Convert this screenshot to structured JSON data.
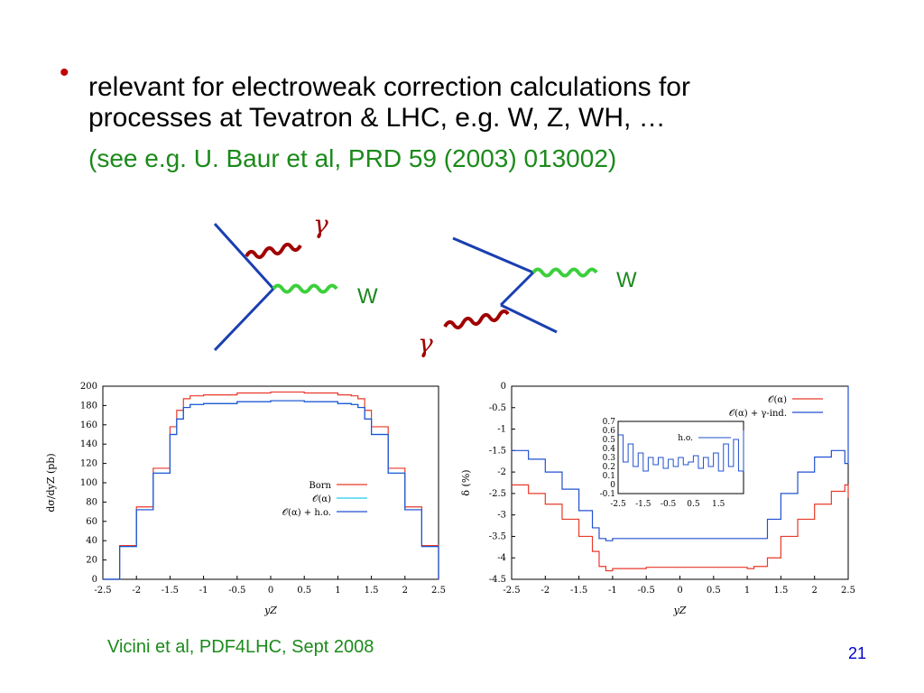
{
  "slide": {
    "bullet_line1": "relevant for electroweak correction calculations for",
    "bullet_line2": "processes at Tevatron & LHC, e.g. W, Z, WH, …",
    "reference": "(see e.g. U. Baur et al, PRD 59 (2003) 013002)",
    "footer": "Vicini et al, PDF4LHC, Sept 2008",
    "page_number": "21"
  },
  "diagrams": {
    "photon_label": "γ",
    "w_label": "W",
    "colors": {
      "fermion": "#1a3fb0",
      "photon": "#a00000",
      "w": "#3ccf3c",
      "label_green": "#1b8a1b"
    }
  },
  "chart_data": [
    {
      "type": "line",
      "xlabel": "yZ",
      "ylabel": "dσ/dyZ (pb)",
      "xlim": [
        -2.5,
        2.5
      ],
      "ylim": [
        0,
        200
      ],
      "xticks": [
        "-2.5",
        "-2",
        "-1.5",
        "-1",
        "-0.5",
        "0",
        "0.5",
        "1",
        "1.5",
        "2",
        "2.5"
      ],
      "yticks": [
        "0",
        "20",
        "40",
        "60",
        "80",
        "100",
        "120",
        "140",
        "160",
        "180",
        "200"
      ],
      "legend_position": "right",
      "series": [
        {
          "name": "Born",
          "color": "#e83a2a",
          "x": [
            -2.5,
            -2.25,
            -2.0,
            -1.75,
            -1.5,
            -1.4,
            -1.3,
            -1.2,
            -1.0,
            -0.5,
            0,
            0.5,
            1.0,
            1.2,
            1.3,
            1.4,
            1.5,
            1.75,
            2.0,
            2.25,
            2.5
          ],
          "y": [
            0,
            35,
            75,
            115,
            158,
            175,
            187,
            190,
            191,
            193,
            194,
            193,
            191,
            190,
            187,
            175,
            158,
            115,
            75,
            35,
            0
          ]
        },
        {
          "name": "𝒪(α)",
          "color": "#22ccee",
          "x": [
            -2.5,
            -2.25,
            -2.0,
            -1.75,
            -1.5,
            -1.4,
            -1.3,
            -1.2,
            -1.0,
            -0.5,
            0,
            0.5,
            1.0,
            1.2,
            1.3,
            1.4,
            1.5,
            1.75,
            2.0,
            2.25,
            2.5
          ],
          "y": [
            0,
            34,
            72,
            110,
            150,
            166,
            178,
            181,
            182,
            184,
            185,
            184,
            182,
            181,
            178,
            166,
            150,
            110,
            72,
            34,
            0
          ]
        },
        {
          "name": "𝒪(α) + h.o.",
          "color": "#2050d0",
          "x": [
            -2.5,
            -2.25,
            -2.0,
            -1.75,
            -1.5,
            -1.4,
            -1.3,
            -1.2,
            -1.0,
            -0.5,
            0,
            0.5,
            1.0,
            1.2,
            1.3,
            1.4,
            1.5,
            1.75,
            2.0,
            2.25,
            2.5
          ],
          "y": [
            0,
            34,
            72,
            110,
            150,
            166,
            178,
            181,
            182,
            184,
            185,
            184,
            182,
            181,
            178,
            166,
            150,
            110,
            72,
            34,
            0
          ]
        }
      ]
    },
    {
      "type": "line",
      "xlabel": "yZ",
      "ylabel": "δ (%)",
      "xlim": [
        -2.5,
        2.5
      ],
      "ylim": [
        -4.5,
        0
      ],
      "xticks": [
        "-2.5",
        "-2",
        "-1.5",
        "-1",
        "-0.5",
        "0",
        "0.5",
        "1",
        "1.5",
        "2",
        "2.5"
      ],
      "yticks": [
        "0",
        "-0.5",
        "-1",
        "-1.5",
        "-2",
        "-2.5",
        "-3",
        "-3.5",
        "-4",
        "-4.5"
      ],
      "legend_position": "top-right",
      "series": [
        {
          "name": "𝒪(α)",
          "color": "#e83a2a",
          "x": [
            -2.5,
            -2.25,
            -2.0,
            -1.75,
            -1.5,
            -1.3,
            -1.2,
            -1.1,
            -1.0,
            -0.5,
            0,
            0.5,
            1.0,
            1.1,
            1.2,
            1.3,
            1.5,
            1.75,
            2.0,
            2.25,
            2.45,
            2.5
          ],
          "y": [
            -2.3,
            -2.5,
            -2.75,
            -3.1,
            -3.5,
            -3.85,
            -4.2,
            -4.3,
            -4.25,
            -4.22,
            -4.22,
            -4.22,
            -4.25,
            -4.2,
            -4.2,
            -4.0,
            -3.5,
            -3.1,
            -2.75,
            -2.45,
            -2.3,
            -2.6
          ]
        },
        {
          "name": "𝒪(α) + γ-ind.",
          "color": "#2050d0",
          "x": [
            -2.5,
            -2.25,
            -2.0,
            -1.75,
            -1.5,
            -1.3,
            -1.2,
            -1.1,
            -1.0,
            -0.5,
            0,
            0.5,
            1.0,
            1.1,
            1.2,
            1.3,
            1.5,
            1.75,
            2.0,
            2.25,
            2.45,
            2.5
          ],
          "y": [
            -1.5,
            -1.7,
            -2.0,
            -2.4,
            -2.9,
            -3.3,
            -3.55,
            -3.6,
            -3.55,
            -3.55,
            -3.55,
            -3.55,
            -3.55,
            -3.55,
            -3.55,
            -3.1,
            -2.5,
            -2.0,
            -1.65,
            -1.5,
            -1.8,
            0
          ]
        }
      ],
      "inset": {
        "xlim": [
          -2.5,
          2.5
        ],
        "ylim": [
          -0.1,
          0.7
        ],
        "xticks": [
          "-2.5",
          "-1.5",
          "-0.5",
          "0.5",
          "1.5"
        ],
        "yticks": [
          "0.7",
          "0.6",
          "0.5",
          "0.4",
          "0.3",
          "0.2",
          "0.1",
          "0",
          "-0.1"
        ],
        "series": [
          {
            "name": "h.o.",
            "color": "#2050d0",
            "x": [
              -2.5,
              -2.3,
              -2.1,
              -1.9,
              -1.7,
              -1.5,
              -1.3,
              -1.1,
              -0.9,
              -0.7,
              -0.5,
              -0.3,
              -0.1,
              0.1,
              0.3,
              0.5,
              0.7,
              0.9,
              1.1,
              1.3,
              1.5,
              1.7,
              1.9,
              2.1,
              2.3,
              2.5
            ],
            "y": [
              0.55,
              0.25,
              0.45,
              0.2,
              0.35,
              0.15,
              0.3,
              0.22,
              0.3,
              0.18,
              0.28,
              0.2,
              0.3,
              0.22,
              0.25,
              0.32,
              0.18,
              0.3,
              0.2,
              0.35,
              0.15,
              0.45,
              0.2,
              0.5,
              0.15,
              0.6
            ]
          }
        ]
      }
    }
  ]
}
